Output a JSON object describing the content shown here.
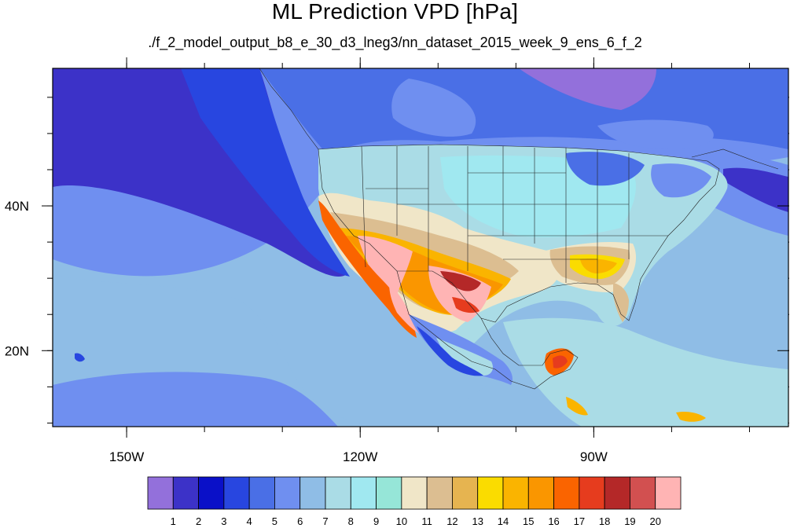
{
  "title": "ML Prediction VPD [hPa]",
  "subtitle": "./f_2_model_output_b8_e_30_d3_lneg3/nn_dataset_2015_week_9_ens_6_f_2",
  "map": {
    "type": "filled-contour",
    "projection": "cylindrical equidistant",
    "lon_range": [
      -159.5,
      -65.0
    ],
    "lat_range": [
      9.5,
      59.0
    ],
    "x_ticks": [
      {
        "value": -150,
        "label": "150W"
      },
      {
        "value": -120,
        "label": "120W"
      },
      {
        "value": -90,
        "label": "90W"
      }
    ],
    "y_ticks": [
      {
        "value": 40,
        "label": "40N"
      },
      {
        "value": 20,
        "label": "20N"
      }
    ],
    "minor_tick_step_lon": 10,
    "minor_tick_step_lat": 5
  },
  "colorbar": {
    "labels": [
      "1",
      "2",
      "3",
      "4",
      "5",
      "6",
      "7",
      "8",
      "9",
      "10",
      "11",
      "12",
      "13",
      "14",
      "15",
      "16",
      "17",
      "18",
      "19",
      "20"
    ],
    "colors": [
      "#9370db",
      "#3c32c8",
      "#0a10c8",
      "#2846e0",
      "#4a6fe6",
      "#6f8ff0",
      "#8fbde6",
      "#aadce6",
      "#a0e8f0",
      "#96e6d8",
      "#f0e6c8",
      "#dcbe91",
      "#e6b450",
      "#fadc00",
      "#fab400",
      "#fa9600",
      "#fa6400",
      "#e63c1e",
      "#b42828",
      "#d25050",
      "#ffb4b4"
    ]
  },
  "colors": {
    "ocean_far": "#8fbde6",
    "ocean_mid": "#6f8ff0",
    "ocean_deep": "#3c32c8",
    "land_base": "#4a6fe6"
  }
}
